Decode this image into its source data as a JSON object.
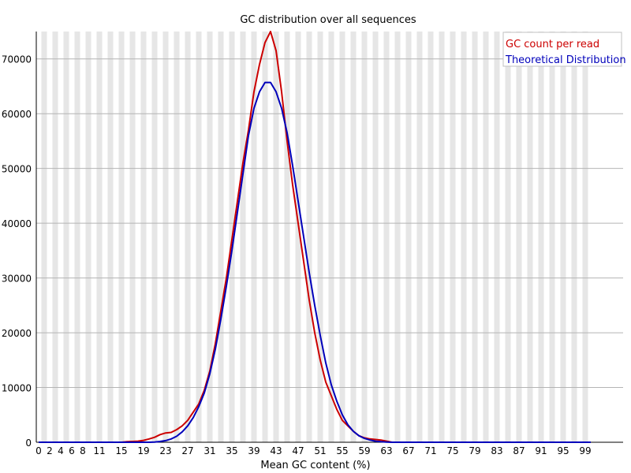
{
  "chart_data": {
    "type": "line",
    "title": "GC distribution over all sequences",
    "xlabel": "Mean GC content (%)",
    "ylabel": "",
    "xlim": [
      0,
      101
    ],
    "ylim": [
      0,
      75000
    ],
    "x_tick_labels": [
      "0",
      "2",
      "4",
      "6",
      "8",
      "11",
      "15",
      "19",
      "23",
      "27",
      "31",
      "35",
      "39",
      "43",
      "47",
      "51",
      "55",
      "59",
      "63",
      "67",
      "71",
      "75",
      "79",
      "83",
      "87",
      "91",
      "95",
      "99"
    ],
    "y_ticks": [
      0,
      10000,
      20000,
      30000,
      40000,
      50000,
      60000,
      70000
    ],
    "grid": "horizontal lines with alternating vertical bands",
    "legend_position": "top-right",
    "series": [
      {
        "name": "GC count per read",
        "color": "#cc0000",
        "x": [
          0,
          1,
          2,
          3,
          4,
          5,
          6,
          7,
          8,
          9,
          10,
          11,
          12,
          13,
          14,
          15,
          16,
          17,
          18,
          19,
          20,
          21,
          22,
          23,
          24,
          25,
          26,
          27,
          28,
          29,
          30,
          31,
          32,
          33,
          34,
          35,
          36,
          37,
          38,
          39,
          40,
          41,
          42,
          43,
          44,
          45,
          46,
          47,
          48,
          49,
          50,
          51,
          52,
          53,
          54,
          55,
          56,
          57,
          58,
          59,
          60,
          61,
          62,
          63,
          64,
          65,
          66,
          67,
          68,
          69,
          70,
          71,
          72,
          73,
          74,
          75,
          76,
          77,
          78,
          79,
          80,
          81,
          82,
          83,
          84,
          85,
          86,
          87,
          88,
          89,
          90,
          91,
          92,
          93,
          94,
          95,
          96,
          97,
          98,
          99,
          100
        ],
        "values": [
          0,
          0,
          0,
          0,
          0,
          0,
          0,
          0,
          0,
          0,
          0,
          0,
          0,
          0,
          0,
          0,
          100,
          150,
          200,
          350,
          600,
          900,
          1400,
          1700,
          1800,
          2300,
          3000,
          4000,
          5500,
          7000,
          9500,
          13000,
          18000,
          24000,
          30000,
          37000,
          44000,
          51000,
          57000,
          64000,
          69000,
          73000,
          75000,
          71500,
          64000,
          55000,
          47000,
          40000,
          33000,
          26000,
          20000,
          15000,
          11000,
          8500,
          6000,
          4000,
          3000,
          2000,
          1200,
          800,
          600,
          500,
          400,
          200,
          0,
          0,
          0,
          0,
          0,
          0,
          0,
          0,
          0,
          0,
          0,
          0,
          0,
          0,
          0,
          0,
          0,
          0,
          0,
          0,
          0,
          0,
          0,
          0,
          0,
          0,
          0,
          0,
          0,
          0,
          0,
          0,
          0,
          0,
          0,
          0,
          0
        ]
      },
      {
        "name": "Theoretical Distribution",
        "color": "#0000bb",
        "x": [
          0,
          1,
          2,
          3,
          4,
          5,
          6,
          7,
          8,
          9,
          10,
          11,
          12,
          13,
          14,
          15,
          16,
          17,
          18,
          19,
          20,
          21,
          22,
          23,
          24,
          25,
          26,
          27,
          28,
          29,
          30,
          31,
          32,
          33,
          34,
          35,
          36,
          37,
          38,
          39,
          40,
          41,
          42,
          43,
          44,
          45,
          46,
          47,
          48,
          49,
          50,
          51,
          52,
          53,
          54,
          55,
          56,
          57,
          58,
          59,
          60,
          61,
          62,
          63,
          64,
          65,
          66,
          67,
          68,
          69,
          70,
          71,
          72,
          73,
          74,
          75,
          76,
          77,
          78,
          79,
          80,
          81,
          82,
          83,
          84,
          85,
          86,
          87,
          88,
          89,
          90,
          91,
          92,
          93,
          94,
          95,
          96,
          97,
          98,
          99,
          100
        ],
        "values": [
          0,
          0,
          0,
          0,
          0,
          0,
          0,
          0,
          0,
          0,
          0,
          0,
          0,
          0,
          0,
          0,
          0,
          0,
          0,
          0,
          0,
          50,
          150,
          300,
          600,
          1100,
          1900,
          3000,
          4500,
          6500,
          9000,
          12500,
          17000,
          22500,
          28500,
          35000,
          42000,
          49000,
          56000,
          61000,
          64000,
          65700,
          65700,
          64000,
          61000,
          56500,
          50500,
          44000,
          37500,
          31000,
          25000,
          19500,
          14500,
          10500,
          7500,
          5000,
          3200,
          2000,
          1200,
          700,
          400,
          200,
          100,
          50,
          0,
          0,
          0,
          0,
          0,
          0,
          0,
          0,
          0,
          0,
          0,
          0,
          0,
          0,
          0,
          0,
          0,
          0,
          0,
          0,
          0,
          0,
          0,
          0,
          0,
          0,
          0,
          0,
          0,
          0,
          0,
          0,
          0,
          0,
          0,
          0,
          0
        ]
      }
    ]
  }
}
